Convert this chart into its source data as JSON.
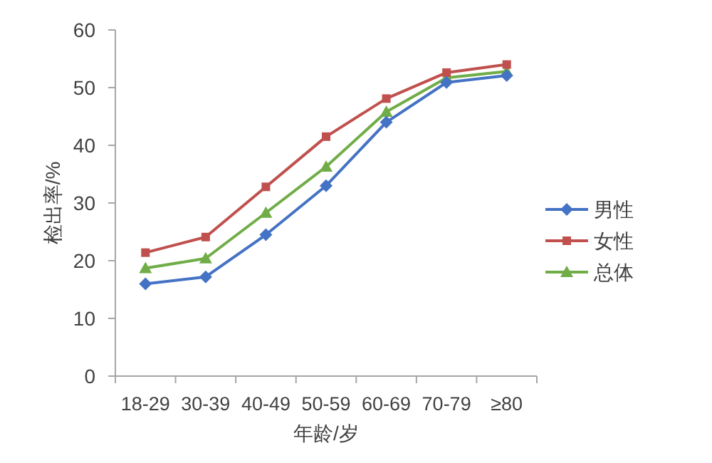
{
  "chart_data": {
    "type": "line",
    "xlabel": "年龄/岁",
    "ylabel": "检出率/%",
    "categories": [
      "18-29",
      "30-39",
      "40-49",
      "50-59",
      "60-69",
      "70-79",
      "≥80"
    ],
    "series": [
      {
        "name": "男性",
        "color": "#4472c4",
        "marker": "diamond",
        "values": [
          16.0,
          17.2,
          24.5,
          33.0,
          44.0,
          50.9,
          52.1
        ]
      },
      {
        "name": "女性",
        "color": "#c0504d",
        "marker": "square",
        "values": [
          21.4,
          24.1,
          32.8,
          41.5,
          48.1,
          52.6,
          54.0
        ]
      },
      {
        "name": "总体",
        "color": "#70ad47",
        "marker": "triangle",
        "values": [
          18.7,
          20.4,
          28.3,
          36.3,
          45.8,
          51.7,
          52.8
        ]
      }
    ],
    "ylim": [
      0,
      60
    ],
    "yticks": [
      0,
      10,
      20,
      30,
      40,
      50,
      60
    ],
    "grid": false,
    "legend": "right"
  }
}
